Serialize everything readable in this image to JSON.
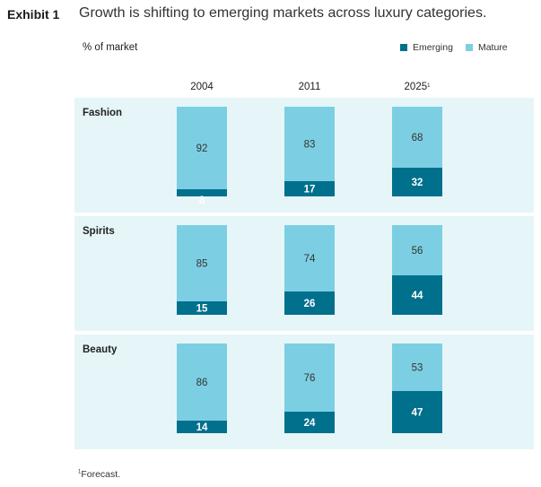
{
  "exhibit_label": "Exhibit 1",
  "title": "Growth is shifting to emerging markets across luxury categories.",
  "footnote_mark": "1",
  "footnote_text": "Forecast.",
  "colors": {
    "emerging": "#00708d",
    "mature": "#7ccfe2",
    "panel_background": "#e6f6f8"
  },
  "chart_data": {
    "type": "bar",
    "stacked": true,
    "normalized": true,
    "ylabel": "% of market",
    "legend_position": "top-right",
    "categories": [
      {
        "label": "2004",
        "mark": ""
      },
      {
        "label": "2011",
        "mark": ""
      },
      {
        "label": "2025",
        "mark": "1"
      }
    ],
    "series_order": [
      "Emerging",
      "Mature"
    ],
    "panels": [
      {
        "label": "Fashion",
        "Emerging": [
          8,
          17,
          32
        ],
        "Mature": [
          92,
          83,
          68
        ]
      },
      {
        "label": "Spirits",
        "Emerging": [
          15,
          26,
          44
        ],
        "Mature": [
          85,
          74,
          56
        ]
      },
      {
        "label": "Beauty",
        "Emerging": [
          14,
          24,
          47
        ],
        "Mature": [
          86,
          76,
          53
        ]
      }
    ]
  }
}
